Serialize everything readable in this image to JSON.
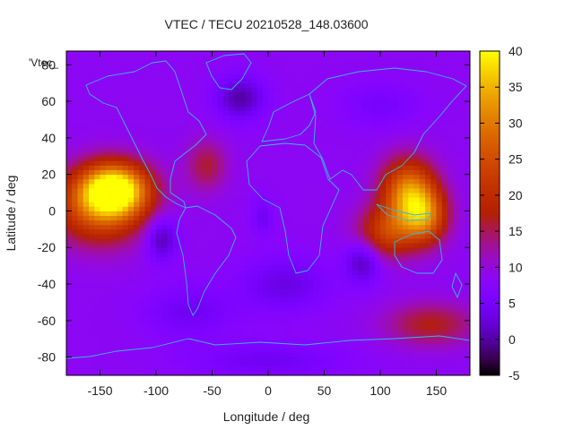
{
  "chart_data": {
    "type": "heatmap",
    "title": "VTEC / TECU 20210528_148.03600",
    "xlabel": "Longitude / deg",
    "ylabel": "Latitude / deg",
    "xlim": [
      -180,
      180
    ],
    "ylim": [
      -90,
      87.5
    ],
    "x_ticks": [
      -150,
      -100,
      -50,
      0,
      50,
      100,
      150
    ],
    "y_ticks": [
      -80,
      -60,
      -40,
      -20,
      0,
      20,
      40,
      60,
      80
    ],
    "key_label": "'Vtec_",
    "colorbar": {
      "range": [
        -5,
        40
      ],
      "ticks": [
        -5,
        0,
        5,
        10,
        15,
        20,
        25,
        30,
        35,
        40
      ],
      "palette": "gnuplot-rgbformulae-7-5-15"
    },
    "background_level": 8.5,
    "features": [
      {
        "lon": -137,
        "lat": 12,
        "value": 38,
        "rx": 30,
        "ry": 14
      },
      {
        "lon": -150,
        "lat": 2,
        "value": 26,
        "rx": 40,
        "ry": 20
      },
      {
        "lon": 125,
        "lat": 10,
        "value": 31,
        "rx": 24,
        "ry": 18
      },
      {
        "lon": 140,
        "lat": -3,
        "value": 26,
        "rx": 20,
        "ry": 15
      },
      {
        "lon": 105,
        "lat": -12,
        "value": 22,
        "rx": 26,
        "ry": 14
      },
      {
        "lon": -55,
        "lat": 25,
        "value": 16,
        "rx": 18,
        "ry": 14
      },
      {
        "lon": 145,
        "lat": -62,
        "value": 17,
        "rx": 40,
        "ry": 12
      },
      {
        "lon": -95,
        "lat": -15,
        "value": 0,
        "rx": 14,
        "ry": 12
      },
      {
        "lon": 85,
        "lat": -27,
        "value": 0,
        "rx": 16,
        "ry": 12
      },
      {
        "lon": -25,
        "lat": 62,
        "value": 0,
        "rx": 22,
        "ry": 12
      },
      {
        "lon": -5,
        "lat": -3,
        "value": 4,
        "rx": 10,
        "ry": 10
      },
      {
        "lon": 15,
        "lat": -40,
        "value": 3,
        "rx": 40,
        "ry": 15
      },
      {
        "lon": -70,
        "lat": -55,
        "value": 4,
        "rx": 40,
        "ry": 14
      },
      {
        "lon": 100,
        "lat": 58,
        "value": 5,
        "rx": 35,
        "ry": 12
      },
      {
        "lon": 0,
        "lat": -82,
        "value": 4,
        "rx": 70,
        "ry": 10
      }
    ],
    "grid": false,
    "legend": "top-left",
    "colors": {
      "coastline": "#33b8e8",
      "axis": "#000000"
    }
  }
}
